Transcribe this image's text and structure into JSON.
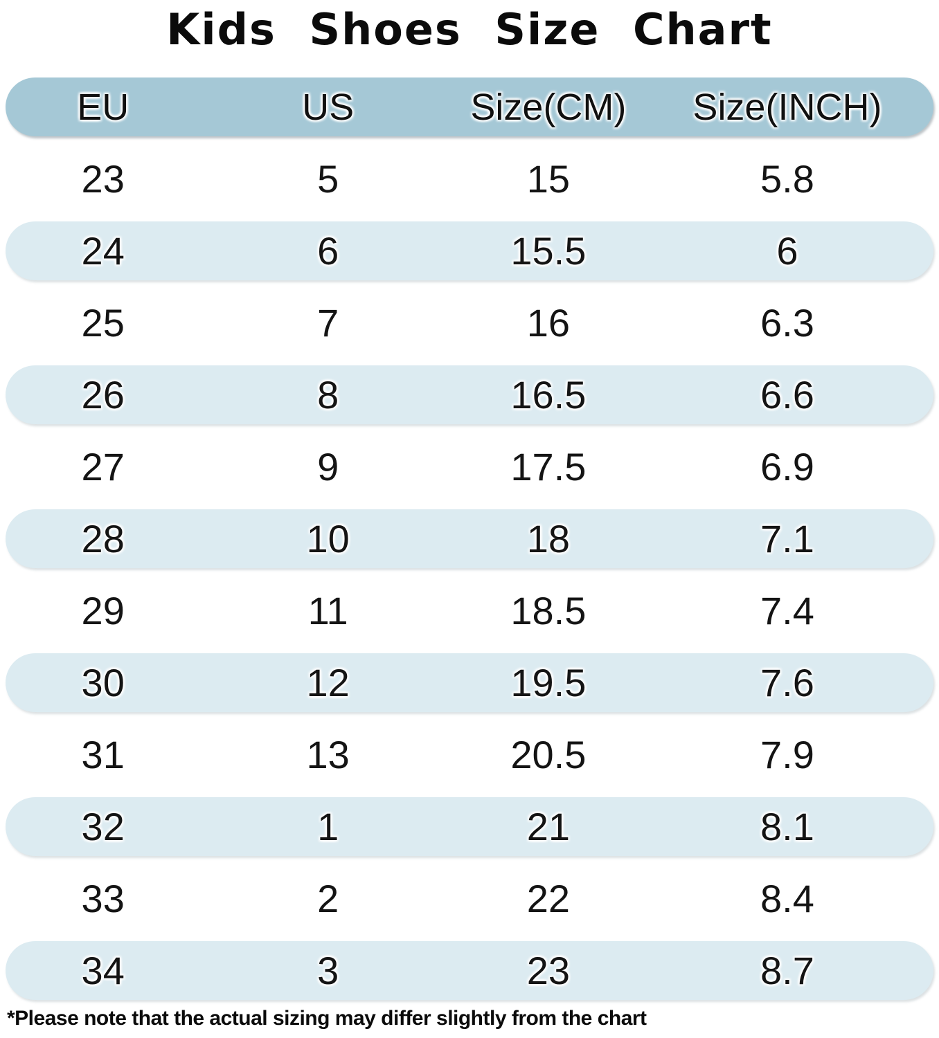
{
  "title": "Kids Shoes Size Chart",
  "footnote": "*Please note that the actual sizing may differ slightly from the chart",
  "colors": {
    "header_bg": "#a5c8d6",
    "row_alt_bg": "#dcebf1",
    "background": "#ffffff",
    "text": "#141414"
  },
  "chart_data": {
    "type": "table",
    "title": "Kids Shoes Size Chart",
    "columns": [
      "EU",
      "US",
      "Size(CM)",
      "Size(INCH)"
    ],
    "rows": [
      [
        "23",
        "5",
        "15",
        "5.8"
      ],
      [
        "24",
        "6",
        "15.5",
        "6"
      ],
      [
        "25",
        "7",
        "16",
        "6.3"
      ],
      [
        "26",
        "8",
        "16.5",
        "6.6"
      ],
      [
        "27",
        "9",
        "17.5",
        "6.9"
      ],
      [
        "28",
        "10",
        "18",
        "7.1"
      ],
      [
        "29",
        "11",
        "18.5",
        "7.4"
      ],
      [
        "30",
        "12",
        "19.5",
        "7.6"
      ],
      [
        "31",
        "13",
        "20.5",
        "7.9"
      ],
      [
        "32",
        "1",
        "21",
        "8.1"
      ],
      [
        "33",
        "2",
        "22",
        "8.4"
      ],
      [
        "34",
        "3",
        "23",
        "8.7"
      ]
    ]
  }
}
